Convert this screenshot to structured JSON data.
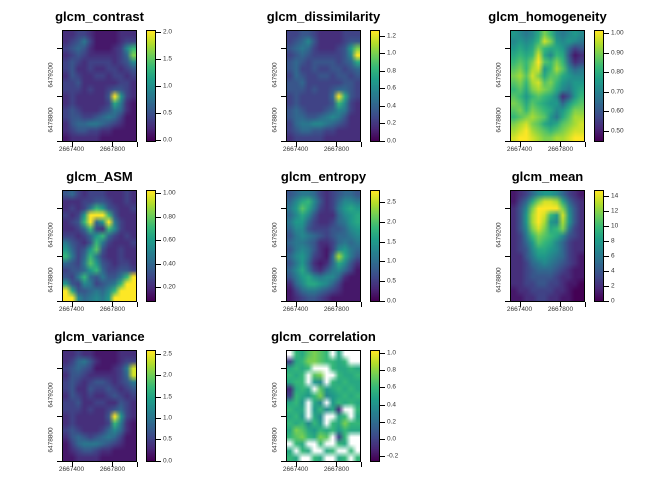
{
  "figure": {
    "background": "#ffffff",
    "title_color": "#000000",
    "axis_text_color": "#333333",
    "colormap": "viridis",
    "na_color": "#ffffff",
    "viridis_stops": [
      [
        68,
        1,
        84
      ],
      [
        72,
        40,
        120
      ],
      [
        62,
        74,
        137
      ],
      [
        49,
        104,
        142
      ],
      [
        38,
        130,
        142
      ],
      [
        31,
        158,
        137
      ],
      [
        53,
        183,
        121
      ],
      [
        109,
        205,
        89
      ],
      [
        180,
        222,
        44
      ],
      [
        253,
        231,
        37
      ]
    ]
  },
  "chart_data": [
    {
      "type": "heatmap",
      "title": "glcm_contrast",
      "x_tick_labels": [
        "2667400",
        "2667800"
      ],
      "y_tick_labels": [
        "6479200",
        "6478800"
      ],
      "legend_position": "right",
      "colorbar": {
        "labels": [
          "0.0",
          "0.5",
          "1.0",
          "1.5",
          "2.0"
        ],
        "fracs": [
          0.02,
          0.26,
          0.5,
          0.74,
          0.98
        ]
      },
      "grid_cols": 12,
      "grid_rows": 16,
      "values": [
        "223321111222",
        "234631111233",
        "34542111237a",
        "23432222235c",
        "343233332347",
        "342232233234",
        "243223323323",
        "334222222332",
        "333232234432",
        "23222224f832",
        "232222239621",
        "343222346521",
        "344334565311",
        "245566543211",
        "234433221111",
        "122222111111"
      ]
    },
    {
      "type": "heatmap",
      "title": "glcm_dissimilarity",
      "x_tick_labels": [
        "2667400",
        "2667800"
      ],
      "y_tick_labels": [
        "6479200",
        "6478800"
      ],
      "legend_position": "right",
      "colorbar": {
        "labels": [
          "0.0",
          "0.2",
          "0.4",
          "0.6",
          "0.8",
          "1.0",
          "1.2"
        ],
        "fracs": [
          0.01,
          0.167,
          0.323,
          0.48,
          0.637,
          0.793,
          0.95
        ]
      },
      "grid_cols": 12,
      "grid_rows": 16,
      "values": [
        "334432222333",
        "345742222344",
        "45653222348c",
        "34543333347f",
        "454344443459",
        "453343344345",
        "354334434434",
        "445333333443",
        "444343345543",
        "34333335f943",
        "34333334a732",
        "454333457632",
        "455445676422",
        "356677654322",
        "345544332222",
        "233333222222"
      ]
    },
    {
      "type": "heatmap",
      "title": "glcm_homogeneity",
      "x_tick_labels": [
        "2667400",
        "2667800"
      ],
      "y_tick_labels": [
        "6479200",
        "6478800"
      ],
      "legend_position": "right",
      "colorbar": {
        "labels": [
          "0.50",
          "0.60",
          "0.70",
          "0.80",
          "0.90",
          "1.00"
        ],
        "fracs": [
          0.1,
          0.274,
          0.448,
          0.622,
          0.796,
          0.97
        ]
      },
      "grid_cols": 12,
      "grid_rows": 16,
      "values": [
        "87679ca76787",
        "7878aec87876",
        "8989ca998534",
        "9a9ae97a9412",
        "abacfbaca523",
        "bcade8adb756",
        "cdbec9bb9877",
        "bcadebca8788",
        "ab9cdcb97689",
        "ba8aba97248a",
        "cb9ba98858ab",
        "bcacba978acc",
        "abcdcb869bdd",
        "cdecb989bcde",
        "defdcbabcdee",
        "effedccddeff"
      ]
    },
    {
      "type": "heatmap",
      "title": "glcm_ASM",
      "x_tick_labels": [
        "2667400",
        "2667800"
      ],
      "y_tick_labels": [
        "6479200",
        "6478800"
      ],
      "legend_position": "right",
      "colorbar": {
        "labels": [
          "0.20",
          "0.40",
          "0.60",
          "0.80",
          "1.00"
        ],
        "fracs": [
          0.13,
          0.34,
          0.55,
          0.76,
          0.97
        ]
      },
      "grid_cols": 12,
      "grid_rows": 16,
      "values": [
        "453233322232",
        "222334432232",
        "23236a843223",
        "3238fffa4222",
        "234af58f6322",
        "2235a32a7322",
        "332358a53232",
        "64324a632223",
        "85348b422322",
        "a635a6322322",
        "5436b8432332",
        "34458a533443",
        "436a546446af",
        "843763456aff",
        "f9445657afff",
        "ff756768ffff"
      ]
    },
    {
      "type": "heatmap",
      "title": "glcm_entropy",
      "x_tick_labels": [
        "2667400",
        "2667800"
      ],
      "y_tick_labels": [
        "6479200",
        "6478800"
      ],
      "legend_position": "right",
      "colorbar": {
        "labels": [
          "0.0",
          "0.5",
          "1.0",
          "1.5",
          "2.0",
          "2.5"
        ],
        "fracs": [
          0.01,
          0.186,
          0.362,
          0.538,
          0.714,
          0.89
        ]
      },
      "grid_cols": 12,
      "grid_rows": 16,
      "values": [
        "456653234554",
        "579a74235776",
        "68b963236898",
        "579742225789",
        "688532235689",
        "577433344578",
        "467654345567",
        "566542235656",
        "467642137865",
        "57863215d964",
        "468521259742",
        "579632467531",
        "468976775211",
        "257998753111",
        "135665432111",
        "123443211111"
      ]
    },
    {
      "type": "heatmap",
      "title": "glcm_mean",
      "x_tick_labels": [
        "2667400",
        "2667800"
      ],
      "y_tick_labels": [
        "6479200",
        "6478800"
      ],
      "legend_position": "right",
      "colorbar": {
        "labels": [
          "0",
          "2",
          "4",
          "6",
          "8",
          "10",
          "12",
          "14"
        ],
        "fracs": [
          0.013,
          0.146,
          0.28,
          0.413,
          0.546,
          0.68,
          0.813,
          0.946
        ]
      },
      "grid_cols": 12,
      "grid_rows": 16,
      "values": [
        "123578875321",
        "1359ceed9532",
        "247cffffc742",
        "248dfea8e842",
        "248dfd87d842",
        "247cec9ac632",
        "236acba97432",
        "2358ba975322",
        "234799875322",
        "224688765321",
        "223567654321",
        "223455543211",
        "223444432211",
        "223344332110",
        "122333322100",
        "112233221100"
      ]
    },
    {
      "type": "heatmap",
      "title": "glcm_variance",
      "x_tick_labels": [
        "2667400",
        "2667800"
      ],
      "y_tick_labels": [
        "6479200",
        "6478800"
      ],
      "legend_position": "right",
      "colorbar": {
        "labels": [
          "0.0",
          "0.5",
          "1.0",
          "1.5",
          "2.0",
          "2.5"
        ],
        "fracs": [
          0.01,
          0.201,
          0.392,
          0.583,
          0.774,
          0.965
        ]
      },
      "grid_cols": 12,
      "grid_rows": 16,
      "values": [
        "223221111222",
        "235642111233",
        "34543111236e",
        "24432222235e",
        "343234432346",
        "342243343234",
        "243232234323",
        "334223322432",
        "333232234532",
        "23222224f832",
        "23222223a621",
        "343222357521",
        "245434565311",
        "135666543211",
        "123443221111",
        "112222111111"
      ]
    },
    {
      "type": "heatmap",
      "title": "glcm_correlation",
      "x_tick_labels": [
        "2667400",
        "2667800"
      ],
      "y_tick_labels": [
        "6479200",
        "6478800"
      ],
      "legend_position": "right",
      "colorbar": {
        "labels": [
          "-0.2",
          "0.0",
          "0.2",
          "0.4",
          "0.6",
          "0.8",
          "1.0"
        ],
        "fracs": [
          0.052,
          0.205,
          0.36,
          0.513,
          0.666,
          0.82,
          0.97
        ]
      },
      "grid_cols": 12,
      "grid_rows": 16,
      "values": [
        "xa9bcbax9xxx",
        "39accbaa9axx",
        "9a9axxxa99a9",
        "a9axbcxxa99a",
        "9aax87xa9a99",
        "29a9xb89a9a9",
        "3a98ac789a9a",
        "9a8x97x8a9a9",
        "a99x8a792xxa",
        "9a8x97xx9ax9",
        "a9a7a8xa9caa",
        "9cb98a9a8a99",
        "abca9cbx3axx",
        "xa9xxaxxa9xx",
        "9xa9xx9axxax",
        "a9xxa9xx9axa"
      ]
    }
  ]
}
